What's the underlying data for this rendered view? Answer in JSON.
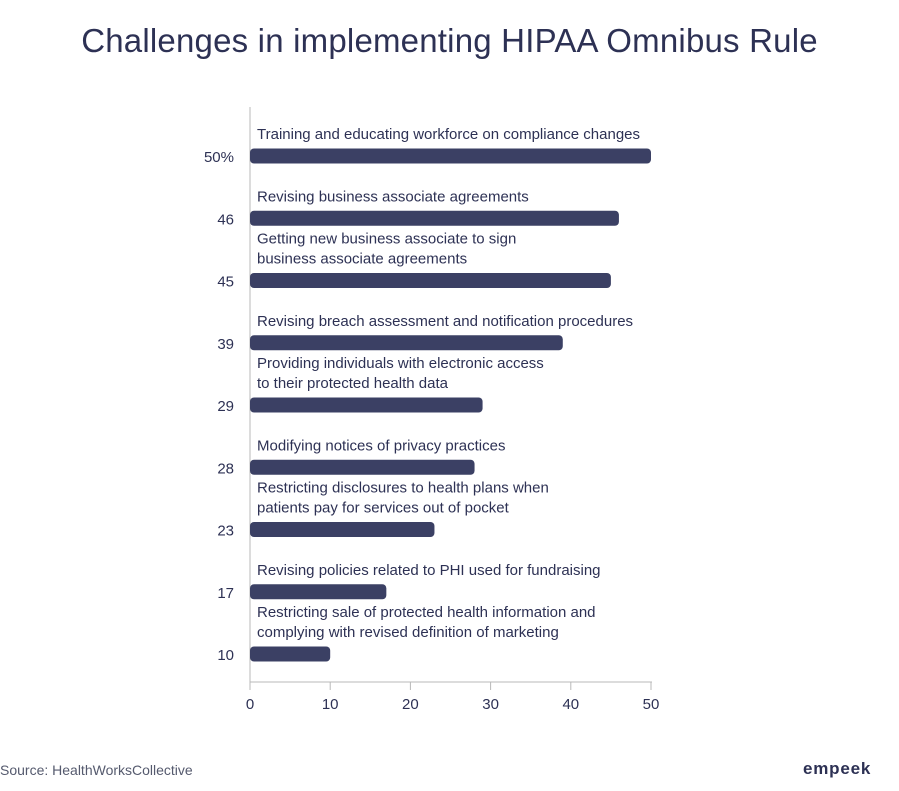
{
  "title": "Challenges in implementing HIPAA Omnibus Rule",
  "source": "Source: HealthWorksCollective",
  "brand": "empeek",
  "colors": {
    "bar": "#3b4064",
    "text": "#2d3154",
    "axis": "#b8b8b8"
  },
  "chart_data": {
    "type": "bar",
    "orientation": "horizontal",
    "categories": [
      [
        "Training and educating workforce on compliance changes"
      ],
      [
        "Revising business associate agreements"
      ],
      [
        "Getting new business associate to sign",
        "business associate agreements"
      ],
      [
        "Revising breach assessment and notification procedures"
      ],
      [
        "Providing individuals with electronic access",
        "to their protected health data"
      ],
      [
        "Modifying notices of privacy practices"
      ],
      [
        "Restricting disclosures to health plans when",
        "patients pay for services out of pocket"
      ],
      [
        "Revising policies related to PHI used for fundraising"
      ],
      [
        "Restricting sale of protected health information and",
        "complying with revised definition of marketing"
      ]
    ],
    "values": [
      50,
      46,
      45,
      39,
      29,
      28,
      23,
      17,
      10
    ],
    "value_labels": [
      "50%",
      "46",
      "45",
      "39",
      "29",
      "28",
      "23",
      "17",
      "10"
    ],
    "xlim": [
      0,
      50
    ],
    "xticks": [
      0,
      10,
      20,
      30,
      40,
      50
    ],
    "xlabel": "",
    "ylabel": "",
    "grid": false,
    "legend": "none"
  }
}
